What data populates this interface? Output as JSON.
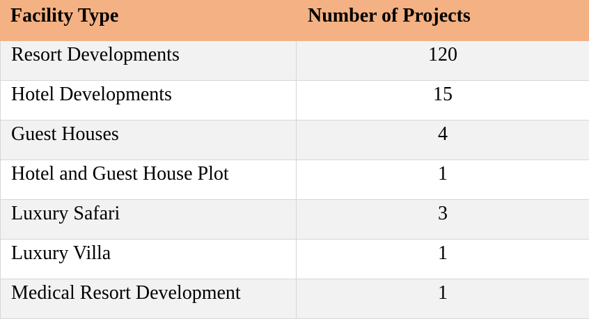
{
  "table": {
    "headers": [
      "Facility Type",
      "Number of Projects"
    ],
    "rows": [
      [
        "Resort Developments",
        "120"
      ],
      [
        "Hotel Developments",
        "15"
      ],
      [
        "Guest Houses",
        "4"
      ],
      [
        "Hotel and Guest House Plot",
        "1"
      ],
      [
        "Luxury Safari",
        "3"
      ],
      [
        "Luxury Villa",
        "1"
      ],
      [
        "Medical Resort Development",
        "1"
      ]
    ],
    "colors": {
      "header_bg": "#f4b183",
      "odd_row_bg": "#f2f2f2",
      "even_row_bg": "#ffffff",
      "border": "#d6d6d6"
    }
  }
}
